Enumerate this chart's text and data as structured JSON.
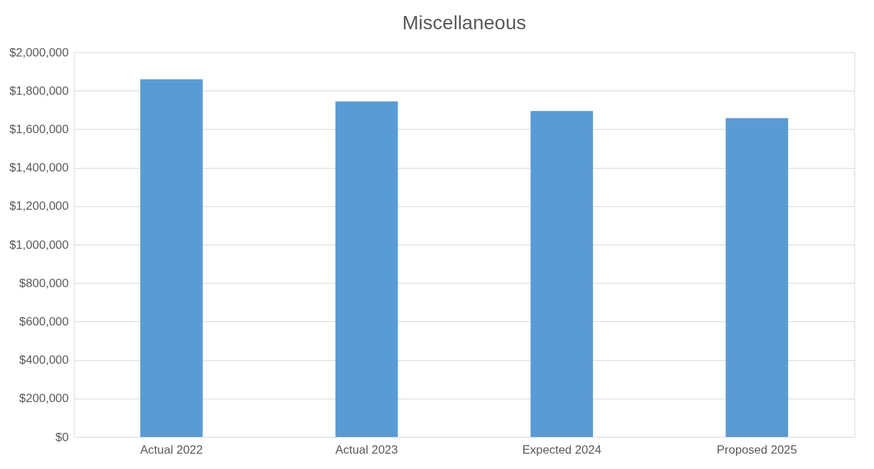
{
  "chart_data": {
    "type": "bar",
    "title": "Miscellaneous",
    "categories": [
      "Actual 2022",
      "Actual 2023",
      "Expected 2024",
      "Proposed 2025"
    ],
    "values": [
      1860000,
      1745000,
      1695000,
      1658000
    ],
    "color": "#5b9bd5",
    "ylim": [
      0,
      2000000
    ],
    "yticks": [
      {
        "value": 0,
        "label": "$0"
      },
      {
        "value": 200000,
        "label": "$200,000"
      },
      {
        "value": 400000,
        "label": "$400,000"
      },
      {
        "value": 600000,
        "label": "$600,000"
      },
      {
        "value": 800000,
        "label": "$800,000"
      },
      {
        "value": 1000000,
        "label": "$1,000,000"
      },
      {
        "value": 1200000,
        "label": "$1,200,000"
      },
      {
        "value": 1400000,
        "label": "$1,400,000"
      },
      {
        "value": 1600000,
        "label": "$1,600,000"
      },
      {
        "value": 1800000,
        "label": "$1,800,000"
      },
      {
        "value": 2000000,
        "label": "$2,000,000"
      }
    ],
    "grid": "y"
  }
}
